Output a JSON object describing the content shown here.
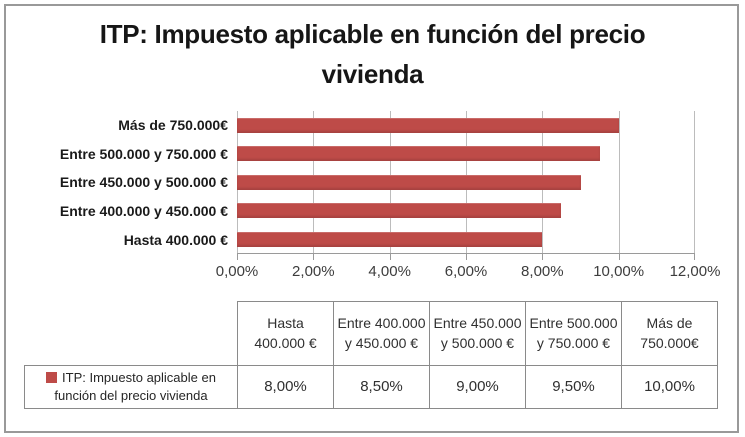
{
  "chart_data": {
    "type": "bar",
    "orientation": "horizontal",
    "title": "ITP: Impuesto aplicable en función del precio vivienda",
    "series_name": "ITP: Impuesto aplicable en función del precio vivienda",
    "categories": [
      "Más de 750.000€",
      "Entre 500.000 y 750.000 €",
      "Entre 450.000 y 500.000 €",
      "Entre 400.000 y 450.000 €",
      "Hasta 400.000 €"
    ],
    "values": [
      10.0,
      9.5,
      9.0,
      8.5,
      8.0
    ],
    "x_axis": {
      "min": 0,
      "max": 12,
      "tick_step": 2,
      "tick_labels": [
        "0,00%",
        "2,00%",
        "4,00%",
        "6,00%",
        "8,00%",
        "10,00%",
        "12,00%"
      ]
    },
    "xlabel": "",
    "ylabel": "",
    "grid": "vertical gridlines on",
    "bar_color": "#be4b48",
    "legend_position": "bottom table row label"
  },
  "table": {
    "row_label": "ITP: Impuesto aplicable en función del precio vivienda",
    "legend_color": "#be4b48",
    "columns": [
      "Hasta 400.000 €",
      "Entre 400.000 y 450.000 €",
      "Entre 450.000 y 500.000 €",
      "Entre 500.000 y 750.000 €",
      "Más de 750.000€"
    ],
    "values": [
      "8,00%",
      "8,50%",
      "9,00%",
      "9,50%",
      "10,00%"
    ]
  },
  "colors": {
    "bar": "#be4b48",
    "gridline": "#bcbcbc",
    "axis_line": "#9a9a9a",
    "table_border": "#8a8a8a",
    "frame_border": "#999999",
    "text": "#262626"
  }
}
